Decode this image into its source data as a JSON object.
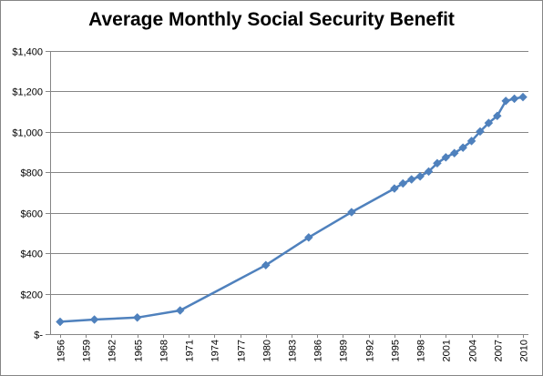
{
  "chart_data": {
    "type": "line",
    "title": "Average Monthly Social Security Benefit",
    "xlabel": "",
    "ylabel": "",
    "xlim": [
      1956,
      2010
    ],
    "ylim": [
      0,
      1400
    ],
    "grid": true,
    "legend": "none",
    "x_tick_labels": [
      "1956",
      "1959",
      "1962",
      "1965",
      "1968",
      "1971",
      "1974",
      "1977",
      "1980",
      "1983",
      "1986",
      "1989",
      "1992",
      "1995",
      "1998",
      "2001",
      "2004",
      "2007",
      "2010"
    ],
    "y_tick_labels": [
      "$-",
      "$200",
      "$400",
      "$600",
      "$800",
      "$1,000",
      "$1,200",
      "$1,400"
    ],
    "y_tick_values": [
      0,
      200,
      400,
      600,
      800,
      1000,
      1200,
      1400
    ],
    "series": [
      {
        "color": "#4f81bd",
        "marker": "diamond",
        "points": [
          {
            "x": 1956,
            "y": 61
          },
          {
            "x": 1960,
            "y": 72
          },
          {
            "x": 1965,
            "y": 82
          },
          {
            "x": 1970,
            "y": 117
          },
          {
            "x": 1980,
            "y": 341
          },
          {
            "x": 1985,
            "y": 478
          },
          {
            "x": 1990,
            "y": 603
          },
          {
            "x": 1995,
            "y": 720
          },
          {
            "x": 1996,
            "y": 745
          },
          {
            "x": 1997,
            "y": 765
          },
          {
            "x": 1998,
            "y": 780
          },
          {
            "x": 1999,
            "y": 804
          },
          {
            "x": 2000,
            "y": 845
          },
          {
            "x": 2001,
            "y": 874
          },
          {
            "x": 2002,
            "y": 895
          },
          {
            "x": 2003,
            "y": 922
          },
          {
            "x": 2004,
            "y": 955
          },
          {
            "x": 2005,
            "y": 1002
          },
          {
            "x": 2006,
            "y": 1044
          },
          {
            "x": 2007,
            "y": 1079
          },
          {
            "x": 2008,
            "y": 1153
          },
          {
            "x": 2009,
            "y": 1164
          },
          {
            "x": 2010,
            "y": 1172
          }
        ]
      }
    ]
  }
}
